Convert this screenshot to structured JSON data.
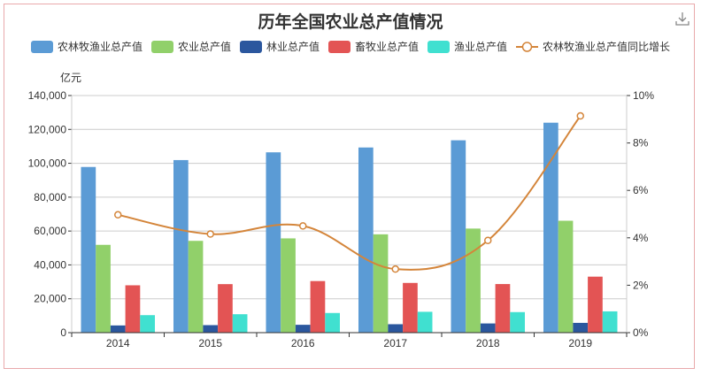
{
  "chart_data": {
    "type": "bar",
    "title": "历年全国农业总产值情况",
    "categories": [
      "2014",
      "2015",
      "2016",
      "2017",
      "2018",
      "2019"
    ],
    "ylabel": "亿元",
    "ylim": [
      0,
      140000
    ],
    "yticks": [
      "0",
      "20,000",
      "40,000",
      "60,000",
      "80,000",
      "100,000",
      "120,000",
      "140,000"
    ],
    "y2lim": [
      0,
      10
    ],
    "y2ticks": [
      "0%",
      "2%",
      "4%",
      "6%",
      "8%",
      "10%"
    ],
    "legend_position": "top",
    "grid": true,
    "series": [
      {
        "name": "农林牧渔业总产值",
        "type": "bar",
        "color": "#5b9bd5",
        "values": [
          97823,
          101894,
          106478,
          109332,
          113580,
          123968
        ]
      },
      {
        "name": "农业总产值",
        "type": "bar",
        "color": "#91d06a",
        "values": [
          51851,
          54205,
          55660,
          58060,
          61453,
          66066
        ]
      },
      {
        "name": "林业总产值",
        "type": "bar",
        "color": "#2b579e",
        "values": [
          4256,
          4436,
          4636,
          4981,
          5433,
          5776
        ]
      },
      {
        "name": "畜牧业总产值",
        "type": "bar",
        "color": "#e35454",
        "values": [
          27963,
          28650,
          30462,
          29361,
          28697,
          33065
        ]
      },
      {
        "name": "渔业总产值",
        "type": "bar",
        "color": "#40e0d0",
        "values": [
          10334,
          10880,
          11603,
          12314,
          12132,
          12572
        ]
      },
      {
        "name": "农林牧渔业总产值同比增长",
        "type": "line",
        "axis": "right",
        "unit": "%",
        "color": "#d4853a",
        "values": [
          4.97,
          4.16,
          4.5,
          2.68,
          3.89,
          9.14
        ]
      }
    ]
  },
  "icons": {
    "download": "download-icon"
  }
}
